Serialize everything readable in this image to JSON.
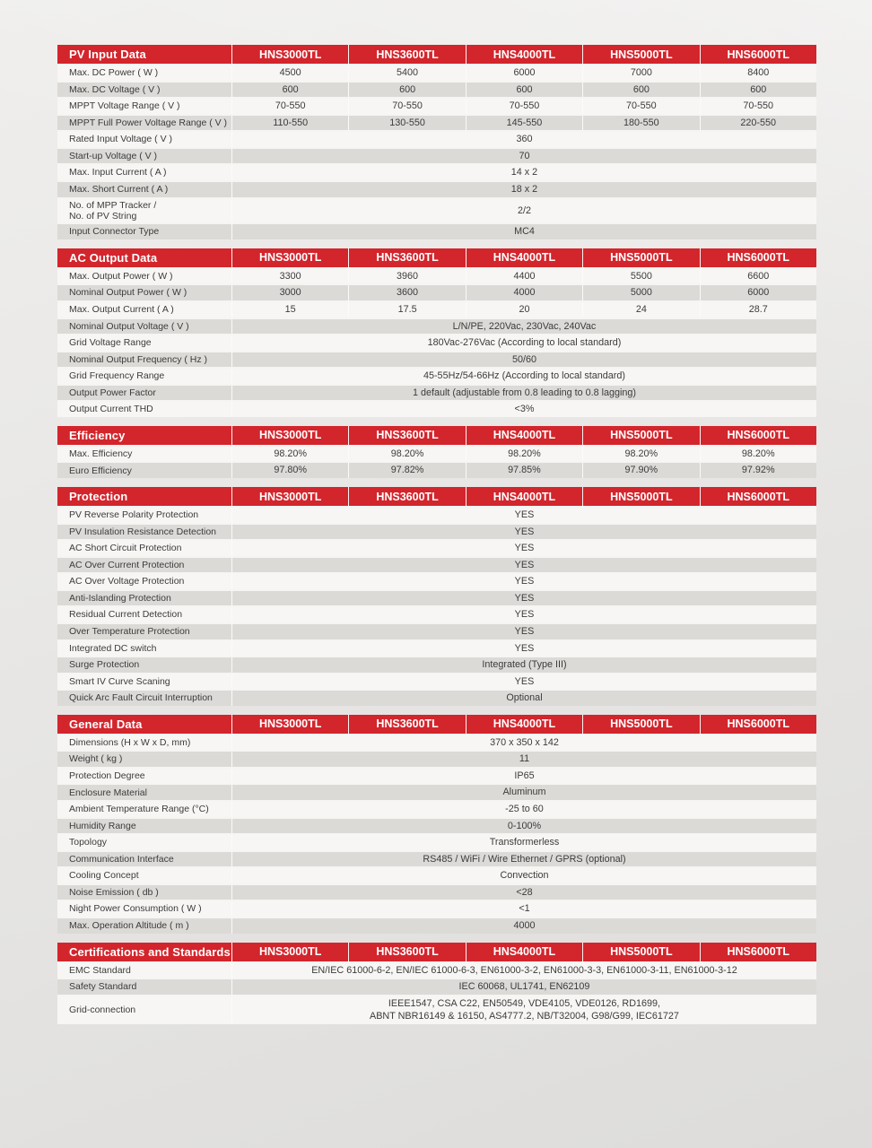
{
  "theme": {
    "accent_red": "#d3252c",
    "row_light": "#f7f6f4",
    "row_dark": "#dbdad7",
    "header_text_color": "#ffffff"
  },
  "models": [
    "HNS3000TL",
    "HNS3600TL",
    "HNS4000TL",
    "HNS5000TL",
    "HNS6000TL"
  ],
  "tables": [
    {
      "title": "PV Input Data",
      "rows": [
        {
          "label": "Max. DC Power ( W )",
          "values": [
            "4500",
            "5400",
            "6000",
            "7000",
            "8400"
          ]
        },
        {
          "label": "Max. DC Voltage ( V )",
          "values": [
            "600",
            "600",
            "600",
            "600",
            "600"
          ]
        },
        {
          "label": "MPPT Voltage Range ( V )",
          "values": [
            "70-550",
            "70-550",
            "70-550",
            "70-550",
            "70-550"
          ]
        },
        {
          "label": "MPPT Full Power Voltage Range ( V )",
          "values": [
            "110-550",
            "130-550",
            "145-550",
            "180-550",
            "220-550"
          ]
        },
        {
          "label": "Rated Input Voltage ( V )",
          "span": "360"
        },
        {
          "label": "Start-up Voltage ( V )",
          "span": "70"
        },
        {
          "label": "Max. Input Current ( A )",
          "span": "14 x 2"
        },
        {
          "label": "Max. Short Current ( A )",
          "span": "18 x 2"
        },
        {
          "label": "No. of MPP Tracker /\nNo. of PV String",
          "span": "2/2"
        },
        {
          "label": "Input Connector Type",
          "span": "MC4"
        }
      ]
    },
    {
      "title": "AC Output Data",
      "rows": [
        {
          "label": "Max. Output Power ( W )",
          "values": [
            "3300",
            "3960",
            "4400",
            "5500",
            "6600"
          ]
        },
        {
          "label": "Nominal Output Power ( W )",
          "values": [
            "3000",
            "3600",
            "4000",
            "5000",
            "6000"
          ]
        },
        {
          "label": "Max. Output Current ( A )",
          "values": [
            "15",
            "17.5",
            "20",
            "24",
            "28.7"
          ]
        },
        {
          "label": "Nominal Output Voltage ( V )",
          "span": "L/N/PE, 220Vac, 230Vac, 240Vac"
        },
        {
          "label": "Grid Voltage Range",
          "span": "180Vac-276Vac (According to local standard)"
        },
        {
          "label": "Nominal Output Frequency ( Hz )",
          "span": "50/60"
        },
        {
          "label": "Grid Frequency Range",
          "span": "45-55Hz/54-66Hz (According to local standard)"
        },
        {
          "label": "Output Power Factor",
          "span": "1 default (adjustable from 0.8 leading to 0.8 lagging)"
        },
        {
          "label": "Output Current THD",
          "span": "<3%"
        }
      ]
    },
    {
      "title": "Efficiency",
      "rows": [
        {
          "label": "Max. Efficiency",
          "values": [
            "98.20%",
            "98.20%",
            "98.20%",
            "98.20%",
            "98.20%"
          ]
        },
        {
          "label": "Euro Efficiency",
          "values": [
            "97.80%",
            "97.82%",
            "97.85%",
            "97.90%",
            "97.92%"
          ]
        }
      ]
    },
    {
      "title": "Protection",
      "rows": [
        {
          "label": "PV Reverse Polarity Protection",
          "span": "YES"
        },
        {
          "label": "PV Insulation Resistance Detection",
          "span": "YES"
        },
        {
          "label": "AC Short Circuit Protection",
          "span": "YES"
        },
        {
          "label": "AC Over Current Protection",
          "span": "YES"
        },
        {
          "label": "AC Over Voltage Protection",
          "span": "YES"
        },
        {
          "label": "Anti-Islanding Protection",
          "span": "YES"
        },
        {
          "label": "Residual Current Detection",
          "span": "YES"
        },
        {
          "label": "Over Temperature Protection",
          "span": "YES"
        },
        {
          "label": "Integrated DC switch",
          "span": "YES"
        },
        {
          "label": "Surge Protection",
          "span": "Integrated (Type III)"
        },
        {
          "label": "Smart IV Curve Scaning",
          "span": "YES"
        },
        {
          "label": "Quick Arc Fault Circuit Interruption",
          "span": "Optional"
        }
      ]
    },
    {
      "title": "General Data",
      "rows": [
        {
          "label": "Dimensions (H x W x D, mm)",
          "span": "370 x 350 x 142"
        },
        {
          "label": "Weight ( kg )",
          "span": "11"
        },
        {
          "label": "Protection Degree",
          "span": "IP65"
        },
        {
          "label": "Enclosure Material",
          "span": "Aluminum"
        },
        {
          "label": "Ambient Temperature Range (°C)",
          "span": "-25 to 60"
        },
        {
          "label": "Humidity Range",
          "span": "0-100%"
        },
        {
          "label": "Topology",
          "span": "Transformerless"
        },
        {
          "label": "Communication Interface",
          "span": "RS485 / WiFi / Wire Ethernet / GPRS (optional)"
        },
        {
          "label": "Cooling Concept",
          "span": "Convection"
        },
        {
          "label": "Noise Emission ( db )",
          "span": "<28"
        },
        {
          "label": "Night Power Consumption ( W )",
          "span": "<1"
        },
        {
          "label": "Max. Operation Altitude ( m )",
          "span": "4000"
        }
      ]
    },
    {
      "title": "Certifications and Standards",
      "rows": [
        {
          "label": "EMC Standard",
          "span": "EN/IEC 61000-6-2, EN/IEC 61000-6-3, EN61000-3-2, EN61000-3-3, EN61000-3-11, EN61000-3-12"
        },
        {
          "label": "Safety Standard",
          "span": "IEC 60068, UL1741, EN62109"
        },
        {
          "label": "Grid-connection",
          "span": "IEEE1547, CSA C22, EN50549, VDE4105, VDE0126, RD1699,\nABNT NBR16149 & 16150, AS4777.2, NB/T32004, G98/G99, IEC61727"
        }
      ]
    }
  ]
}
